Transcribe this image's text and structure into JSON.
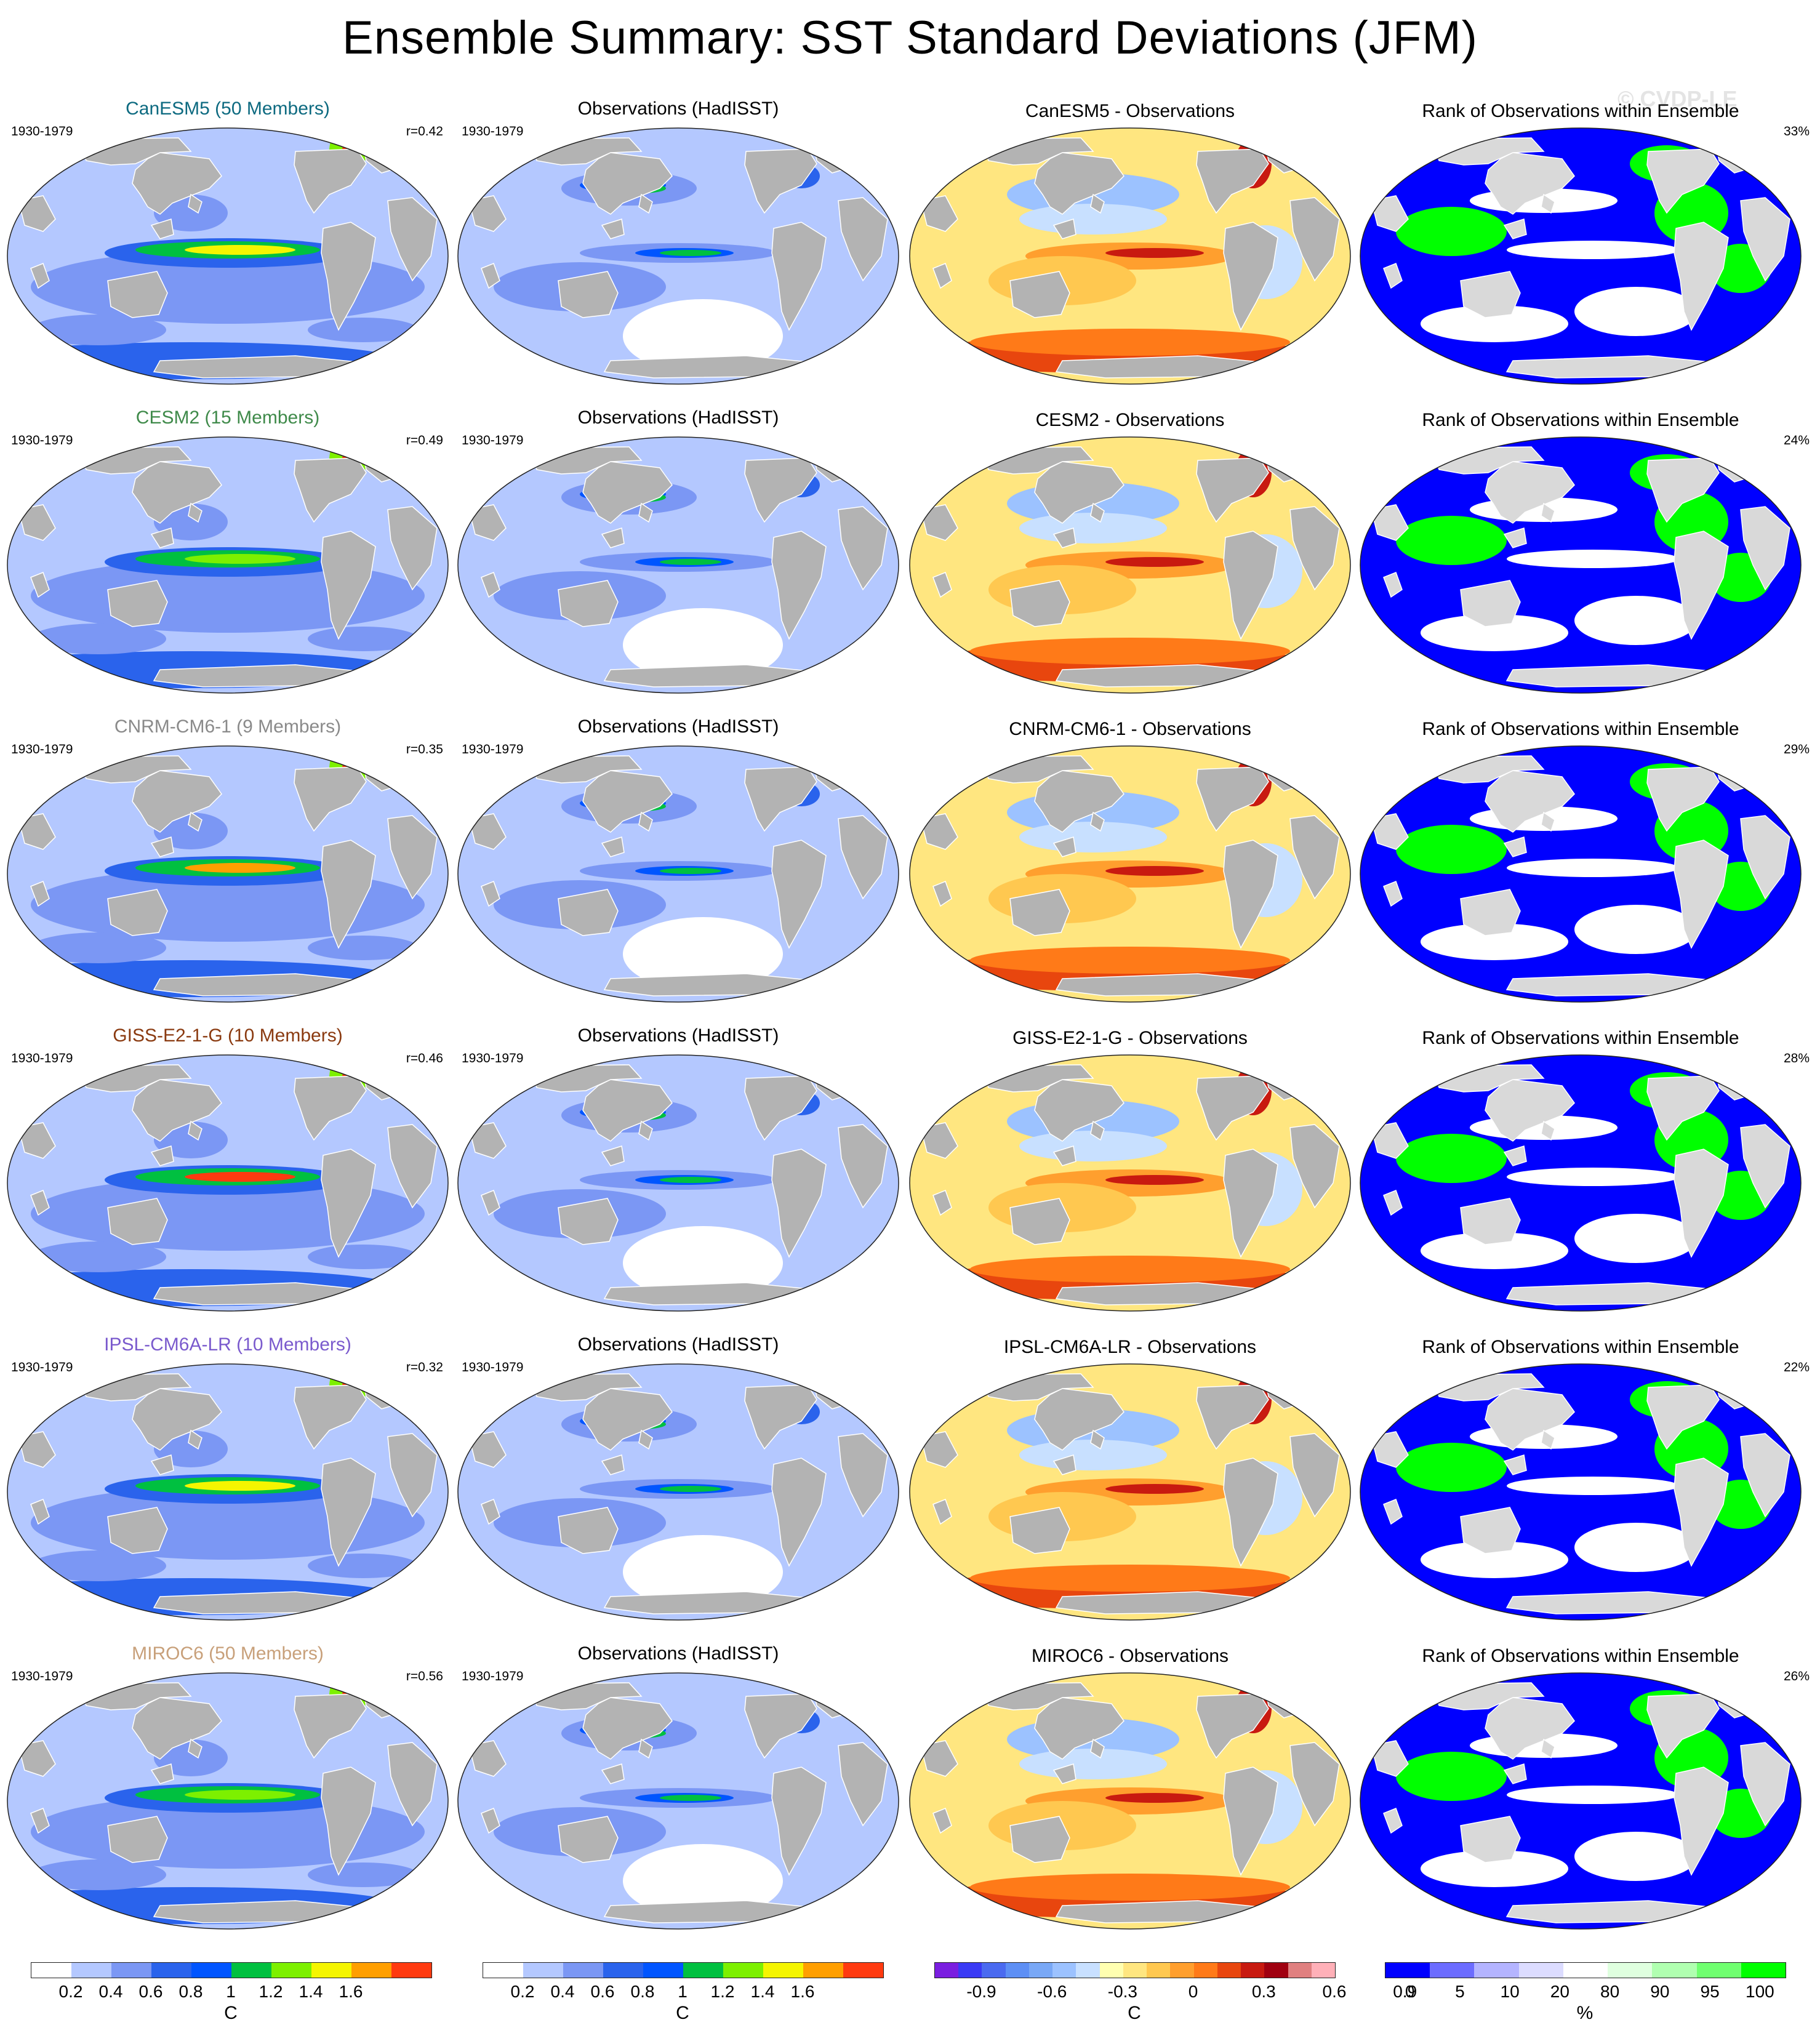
{
  "figure": {
    "title": "Ensemble Summary: SST Standard Deviations (JFM)",
    "copyright": "© CVDP-LE",
    "period": "1930-1979",
    "obs_title": "Observations (HadISST)",
    "rank_title": "Rank of Observations within Ensemble"
  },
  "colors": {
    "land": "#b3b3b3",
    "land_rank": "#d9d9d9",
    "ocean_outline": "#222222",
    "std_scale": [
      "#ffffff",
      "#b4c8ff",
      "#7b97f4",
      "#2a63ec",
      "#0055ff",
      "#00c040",
      "#7df000",
      "#f5f500",
      "#ff9f00",
      "#ff3a10"
    ],
    "diff_scale": [
      "#7a1ee0",
      "#3a3af5",
      "#4a6af0",
      "#5d8ff5",
      "#79a8f6",
      "#9cc2ff",
      "#c8e0ff",
      "#ffffb0",
      "#ffe680",
      "#ffc850",
      "#ff9f2e",
      "#ff7a18",
      "#e8460e",
      "#c81a10",
      "#a00010",
      "#e08080",
      "#ffb0b8"
    ],
    "rank_scale": [
      "#0000ff",
      "#6c6cff",
      "#b4b4ff",
      "#dcdcff",
      "#ffffff",
      "#dfffdf",
      "#b0ffb0",
      "#70ff70",
      "#00ff00"
    ]
  },
  "rows": [
    {
      "model": "CanESM5 (50 Members)",
      "model_color": "#0d6a80",
      "r": "r=0.42",
      "diff_title": "CanESM5 - Observations",
      "rank_pct": "33%"
    },
    {
      "model": "CESM2 (15 Members)",
      "model_color": "#3f8a4a",
      "r": "r=0.49",
      "diff_title": "CESM2 - Observations",
      "rank_pct": "24%"
    },
    {
      "model": "CNRM-CM6-1 (9 Members)",
      "model_color": "#8a8a8a",
      "r": "r=0.35",
      "diff_title": "CNRM-CM6-1 - Observations",
      "rank_pct": "29%"
    },
    {
      "model": "GISS-E2-1-G (10 Members)",
      "model_color": "#8a3a10",
      "r": "r=0.46",
      "diff_title": "GISS-E2-1-G - Observations",
      "rank_pct": "28%"
    },
    {
      "model": "IPSL-CM6A-LR (10 Members)",
      "model_color": "#7a5acd",
      "r": "r=0.32",
      "diff_title": "IPSL-CM6A-LR - Observations",
      "rank_pct": "22%"
    },
    {
      "model": "MIROC6 (50 Members)",
      "model_color": "#c8a07a",
      "r": "r=0.56",
      "diff_title": "MIROC6 - Observations",
      "rank_pct": "26%"
    }
  ],
  "colorbars": {
    "std": {
      "ticks": [
        "0.2",
        "0.4",
        "0.6",
        "0.8",
        "1",
        "1.2",
        "1.4",
        "1.6"
      ],
      "unit": "C"
    },
    "diff": {
      "ticks": [
        "-0.9",
        "-0.6",
        "-0.3",
        "0",
        "0.3",
        "0.6",
        "0.9"
      ],
      "unit": "C"
    },
    "rank": {
      "ticks": [
        "0",
        "5",
        "10",
        "20",
        "80",
        "90",
        "95",
        "100"
      ],
      "unit": "%"
    }
  }
}
